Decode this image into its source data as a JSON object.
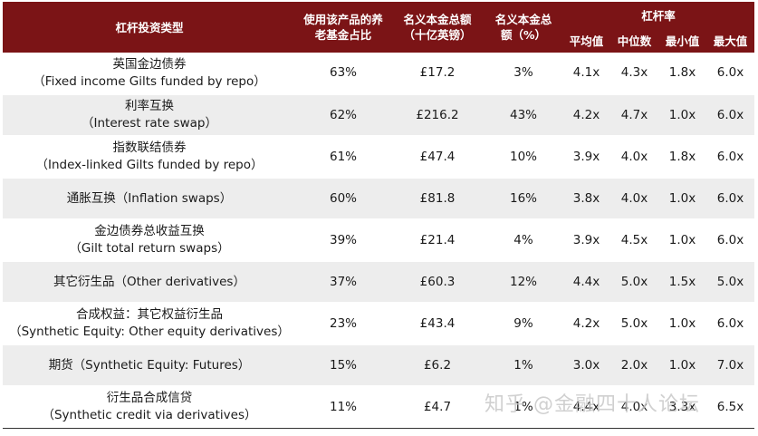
{
  "header": {
    "type": "杠杆投资类型",
    "share": "使用该产品的养老基金占比",
    "notional": "名义本金总额（十亿英镑）",
    "notional_pct": "名义本金总额（%）",
    "leverage": "杠杆率",
    "mean": "平均值",
    "median": "中位数",
    "min": "最小值",
    "max": "最大值"
  },
  "rows": [
    {
      "cn": "英国金边债券",
      "en": "（Fixed income Gilts funded by repo）",
      "share": "63%",
      "notional": "£17.2",
      "pct": "3%",
      "mean": "4.1x",
      "median": "4.3x",
      "min": "1.8x",
      "max": "6.0x"
    },
    {
      "cn": "利率互换",
      "en": "（Interest rate swap）",
      "share": "62%",
      "notional": "£216.2",
      "pct": "43%",
      "mean": "4.2x",
      "median": "4.7x",
      "min": "1.0x",
      "max": "6.0x"
    },
    {
      "cn": "指数联结债券",
      "en": "（Index-linked Gilts funded by repo）",
      "share": "61%",
      "notional": "£47.4",
      "pct": "10%",
      "mean": "3.9x",
      "median": "4.0x",
      "min": "1.8x",
      "max": "6.0x"
    },
    {
      "cn": "通胀互换（Inflation swaps）",
      "en": "",
      "share": "60%",
      "notional": "£81.8",
      "pct": "16%",
      "mean": "3.8x",
      "median": "4.0x",
      "min": "1.0x",
      "max": "6.0x"
    },
    {
      "cn": "金边债券总收益互换",
      "en": "（Gilt total return swaps）",
      "share": "39%",
      "notional": "£21.4",
      "pct": "4%",
      "mean": "3.9x",
      "median": "4.5x",
      "min": "1.0x",
      "max": "6.0x"
    },
    {
      "cn": "其它衍生品（Other derivatives）",
      "en": "",
      "share": "37%",
      "notional": "£60.3",
      "pct": "12%",
      "mean": "4.4x",
      "median": "5.0x",
      "min": "1.5x",
      "max": "5.0x"
    },
    {
      "cn": "合成权益：其它权益衍生品",
      "en": "（Synthetic Equity: Other equity derivatives）",
      "share": "23%",
      "notional": "£43.4",
      "pct": "9%",
      "mean": "4.2x",
      "median": "5.0x",
      "min": "1.0x",
      "max": "6.0x"
    },
    {
      "cn": "期货（Synthetic Equity: Futures）",
      "en": "",
      "share": "15%",
      "notional": "£6.2",
      "pct": "1%",
      "mean": "3.0x",
      "median": "2.0x",
      "min": "1.0x",
      "max": "7.0x"
    },
    {
      "cn": "衍生品合成信贷",
      "en": "（Synthetic credit via derivatives）",
      "share": "11%",
      "notional": "£4.7",
      "pct": "1%",
      "mean": "4.4x",
      "median": "4.0x",
      "min": "3.3x",
      "max": "6.5x"
    }
  ],
  "watermark": "知乎 @金融四十人论坛"
}
